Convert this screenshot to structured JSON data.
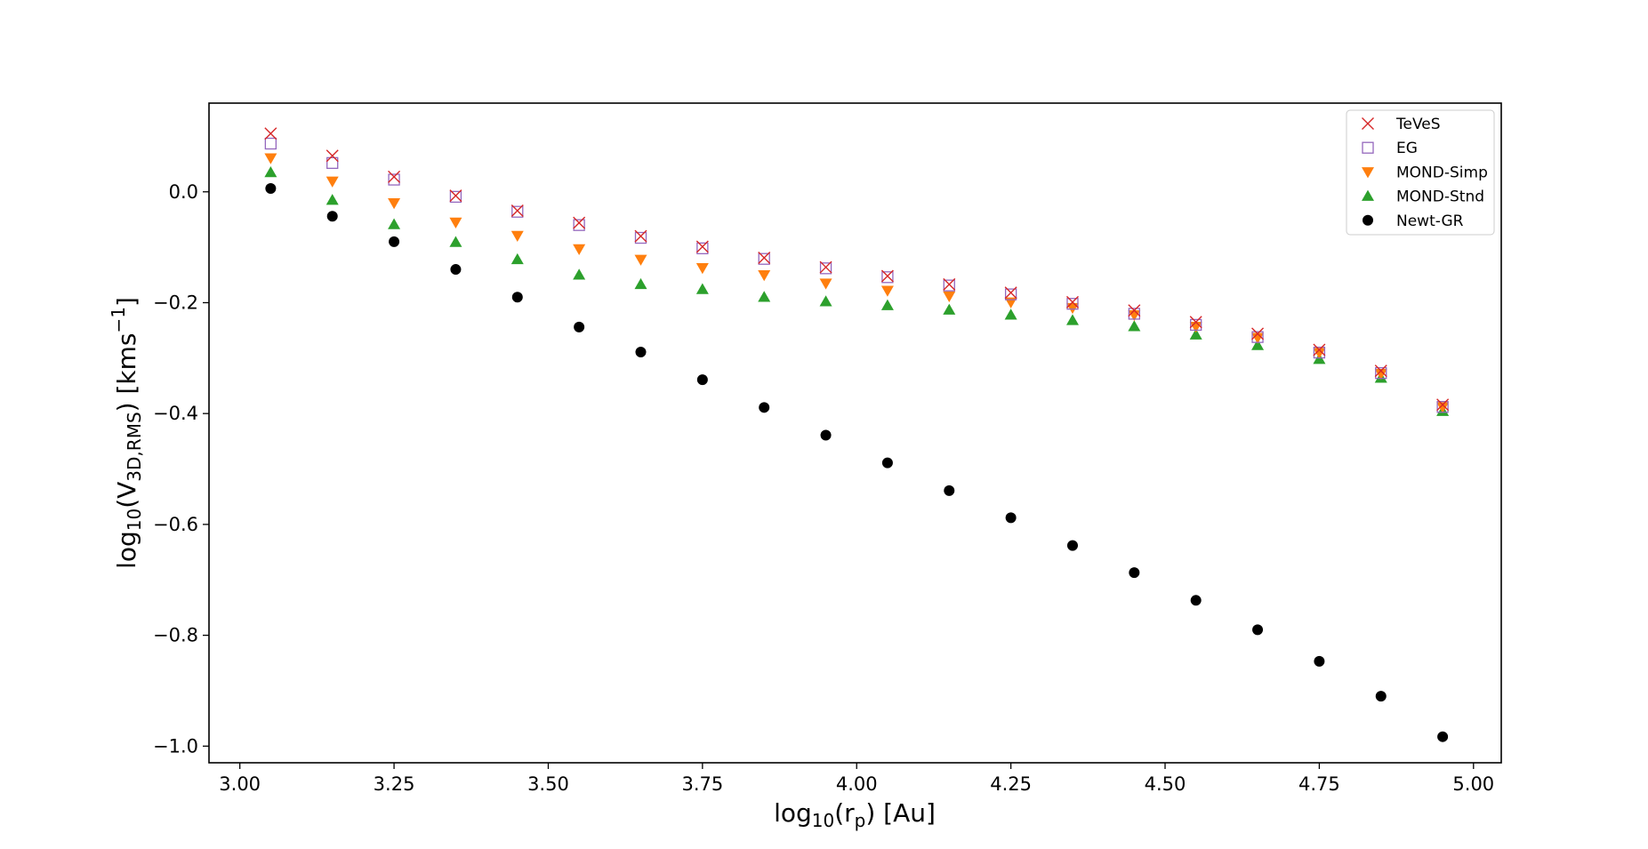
{
  "chart_data": {
    "type": "scatter",
    "title": "",
    "xlabel": "log10(rp) [Au]",
    "ylabel": "log10(V3D,RMS) [kms−1]",
    "xlim": [
      2.95,
      5.045
    ],
    "ylim": [
      -1.03,
      0.16
    ],
    "xticks": [
      3.0,
      3.25,
      3.5,
      3.75,
      4.0,
      4.25,
      4.5,
      4.75,
      5.0
    ],
    "xtick_labels": [
      "3.00",
      "3.25",
      "3.50",
      "3.75",
      "4.00",
      "4.25",
      "4.50",
      "4.75",
      "5.00"
    ],
    "yticks": [
      0.0,
      -0.2,
      -0.4,
      -0.6,
      -0.8,
      -1.0
    ],
    "ytick_labels": [
      "0.0",
      "−0.2",
      "−0.4",
      "−0.6",
      "−0.8",
      "−1.0"
    ],
    "grid": false,
    "legend_position": "top-right",
    "x": [
      3.05,
      3.15,
      3.25,
      3.35,
      3.45,
      3.55,
      3.65,
      3.75,
      3.85,
      3.95,
      4.05,
      4.15,
      4.25,
      4.35,
      4.45,
      4.55,
      4.65,
      4.75,
      4.85,
      4.95
    ],
    "series": [
      {
        "name": "TeVeS",
        "marker": "x",
        "color": "#d62728",
        "values": [
          0.105,
          0.065,
          0.027,
          -0.007,
          -0.034,
          -0.056,
          -0.08,
          -0.099,
          -0.119,
          -0.136,
          -0.152,
          -0.167,
          -0.182,
          -0.199,
          -0.214,
          -0.235,
          -0.256,
          -0.285,
          -0.323,
          -0.384
        ]
      },
      {
        "name": "EG",
        "marker": "square-open",
        "color": "#9467bd",
        "values": [
          0.087,
          0.052,
          0.022,
          -0.009,
          -0.036,
          -0.06,
          -0.083,
          -0.102,
          -0.121,
          -0.138,
          -0.154,
          -0.169,
          -0.185,
          -0.202,
          -0.22,
          -0.24,
          -0.262,
          -0.29,
          -0.327,
          -0.388
        ]
      },
      {
        "name": "MOND-Simp",
        "marker": "triangle-down",
        "color": "#ff7f0e",
        "values": [
          0.061,
          0.019,
          -0.02,
          -0.055,
          -0.079,
          -0.103,
          -0.122,
          -0.137,
          -0.15,
          -0.165,
          -0.178,
          -0.188,
          -0.199,
          -0.209,
          -0.222,
          -0.243,
          -0.263,
          -0.29,
          -0.328,
          -0.388
        ]
      },
      {
        "name": "MOND-Stnd",
        "marker": "triangle-up",
        "color": "#2ca02c",
        "values": [
          0.035,
          -0.015,
          -0.059,
          -0.091,
          -0.122,
          -0.15,
          -0.167,
          -0.176,
          -0.19,
          -0.198,
          -0.205,
          -0.213,
          -0.222,
          -0.232,
          -0.243,
          -0.258,
          -0.277,
          -0.302,
          -0.336,
          -0.396
        ]
      },
      {
        "name": "Newt-GR",
        "marker": "circle",
        "color": "#000000",
        "values": [
          0.006,
          -0.044,
          -0.09,
          -0.14,
          -0.19,
          -0.244,
          -0.289,
          -0.339,
          -0.389,
          -0.439,
          -0.489,
          -0.539,
          -0.588,
          -0.638,
          -0.687,
          -0.737,
          -0.79,
          -0.847,
          -0.91,
          -0.983
        ]
      }
    ]
  }
}
